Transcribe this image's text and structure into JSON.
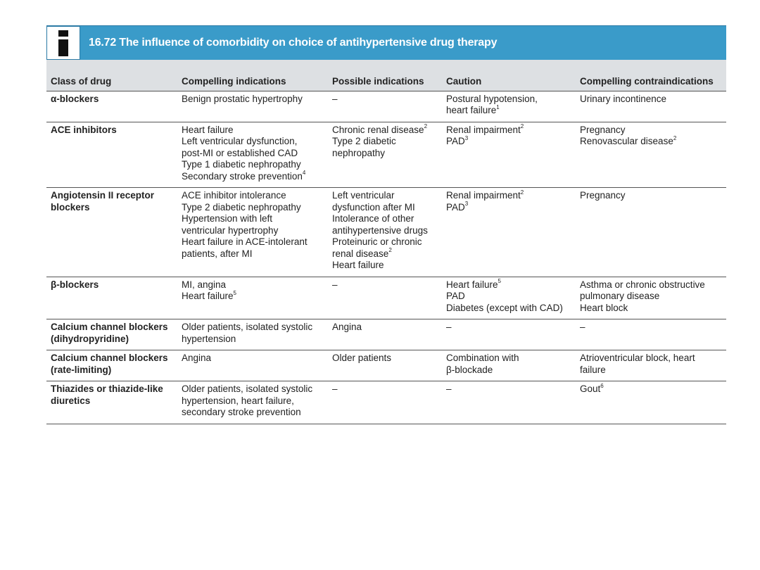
{
  "title": "16.72 The influence of comorbidity on choice of antihypertensive drug therapy",
  "icon": "info-icon",
  "colors": {
    "header_bar": "#3a9bc9",
    "column_header_bg": "#dde0e3"
  },
  "columns": [
    "Class of drug",
    "Compelling indications",
    "Possible indications",
    "Caution",
    "Compelling contraindications"
  ],
  "rows": [
    {
      "drug": [
        "α-blockers"
      ],
      "compelling": [
        {
          "text": "Benign prostatic hypertrophy"
        }
      ],
      "possible": [
        {
          "text": "–"
        }
      ],
      "caution": [
        {
          "text": "Postural hypotension,"
        },
        {
          "text": "heart failure",
          "sup": "1"
        }
      ],
      "contra": [
        {
          "text": "Urinary incontinence"
        }
      ]
    },
    {
      "drug": [
        "ACE inhibitors"
      ],
      "compelling": [
        {
          "text": "Heart failure"
        },
        {
          "text": "Left ventricular dysfunction,"
        },
        {
          "text": "post-MI or established CAD"
        },
        {
          "text": "Type 1 diabetic nephropathy"
        },
        {
          "text": "Secondary stroke prevention",
          "sup": "4"
        }
      ],
      "possible": [
        {
          "text": "Chronic renal disease",
          "sup": "2"
        },
        {
          "text": "Type 2 diabetic"
        },
        {
          "text": "nephropathy"
        }
      ],
      "caution": [
        {
          "text": "Renal impairment",
          "sup": "2"
        },
        {
          "text": "PAD",
          "sup": "3"
        }
      ],
      "contra": [
        {
          "text": "Pregnancy"
        },
        {
          "text": "Renovascular disease",
          "sup": "2"
        }
      ]
    },
    {
      "drug": [
        "Angiotensin II receptor",
        "blockers"
      ],
      "compelling": [
        {
          "text": "ACE inhibitor intolerance"
        },
        {
          "text": "Type 2 diabetic nephropathy"
        },
        {
          "text": "Hypertension with left"
        },
        {
          "text": "ventricular hypertrophy"
        },
        {
          "text": "Heart failure in ACE-intolerant"
        },
        {
          "text": "patients, after MI"
        }
      ],
      "possible": [
        {
          "text": "Left ventricular"
        },
        {
          "text": "dysfunction after MI"
        },
        {
          "text": "Intolerance of other"
        },
        {
          "text": "antihypertensive drugs"
        },
        {
          "text": "Proteinuric or chronic"
        },
        {
          "text": "renal disease",
          "sup": "2"
        },
        {
          "text": "Heart failure"
        }
      ],
      "caution": [
        {
          "text": "Renal impairment",
          "sup": "2"
        },
        {
          "text": "PAD",
          "sup": "3"
        }
      ],
      "contra": [
        {
          "text": "Pregnancy"
        }
      ]
    },
    {
      "drug": [
        "β-blockers"
      ],
      "compelling": [
        {
          "text": "MI, angina"
        },
        {
          "text": "Heart failure",
          "sup": "5"
        }
      ],
      "possible": [
        {
          "text": "–"
        }
      ],
      "caution": [
        {
          "text": "Heart failure",
          "sup": "5"
        },
        {
          "text": "PAD"
        },
        {
          "text": "Diabetes (except with CAD)"
        }
      ],
      "contra": [
        {
          "text": "Asthma or chronic obstructive"
        },
        {
          "text": "pulmonary disease"
        },
        {
          "text": "Heart block"
        }
      ]
    },
    {
      "drug": [
        "Calcium channel blockers",
        "(dihydropyridine)"
      ],
      "compelling": [
        {
          "text": "Older patients, isolated systolic"
        },
        {
          "text": "hypertension"
        }
      ],
      "possible": [
        {
          "text": "Angina"
        }
      ],
      "caution": [
        {
          "text": "–"
        }
      ],
      "contra": [
        {
          "text": "–"
        }
      ]
    },
    {
      "drug": [
        "Calcium channel blockers",
        "(rate-limiting)"
      ],
      "compelling": [
        {
          "text": "Angina"
        }
      ],
      "possible": [
        {
          "text": "Older patients"
        }
      ],
      "caution": [
        {
          "text": "Combination with"
        },
        {
          "text": "β-blockade"
        }
      ],
      "contra": [
        {
          "text": "Atrioventricular block, heart"
        },
        {
          "text": "failure"
        }
      ]
    },
    {
      "drug": [
        "Thiazides or thiazide-like",
        "diuretics"
      ],
      "compelling": [
        {
          "text": "Older patients, isolated systolic"
        },
        {
          "text": "hypertension, heart failure,"
        },
        {
          "text": "secondary stroke prevention"
        }
      ],
      "possible": [
        {
          "text": "–"
        }
      ],
      "caution": [
        {
          "text": "–"
        }
      ],
      "contra": [
        {
          "text": "Gout",
          "sup": "6"
        }
      ]
    }
  ]
}
